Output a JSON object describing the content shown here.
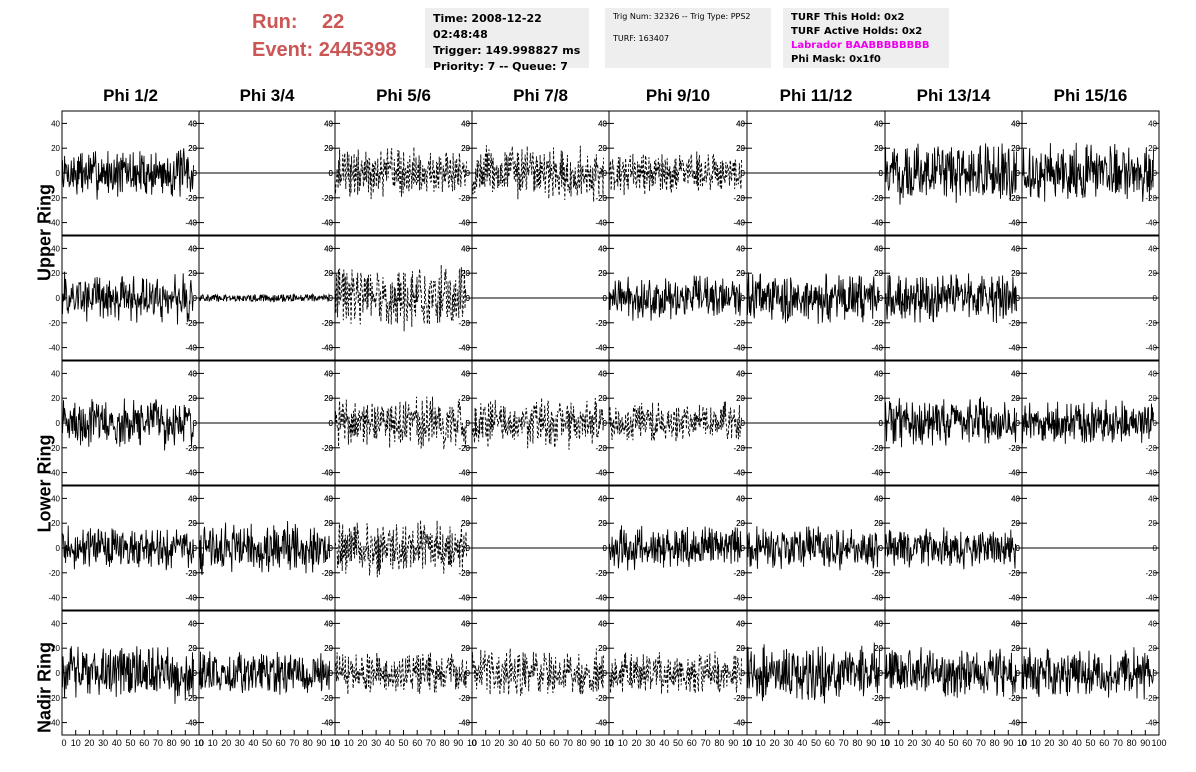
{
  "header": {
    "run_label": "Run:",
    "run_value": "22",
    "event_label": "Event:",
    "event_value": "2445398",
    "time": "Time: 2008-12-22 02:48:48",
    "trigger": "Trigger: 149.998827 ms",
    "priority": "Priority: 7 -- Queue: 7",
    "trig_num": "Trig Num: 32326 -- Trig Type: PPS2",
    "turf": "TURF: 163407",
    "turf_this_hold": "TURF This Hold: 0x2",
    "turf_active_holds": "TURF Active Holds: 0x2",
    "labrador": "Labrador BAABBBBBBBB",
    "phi_mask": "Phi Mask: 0x1f0"
  },
  "colors": {
    "run_text": "#cc5555",
    "labrador_text": "#ee00ee",
    "info_bg": "#eeeeee"
  },
  "columns": [
    "Phi 1/2",
    "Phi 3/4",
    "Phi 5/6",
    "Phi 7/8",
    "Phi 9/10",
    "Phi 11/12",
    "Phi 13/14",
    "Phi 15/16"
  ],
  "ring_labels": [
    "Upper Ring",
    "Lower Ring",
    "Nadir Ring"
  ],
  "chart_data": {
    "type": "line",
    "title": "",
    "xlabel": "",
    "ylabel": "",
    "xlim": [
      0,
      100
    ],
    "ylim": [
      -50,
      50
    ],
    "x_ticks": [
      "0",
      "10",
      "20",
      "30",
      "40",
      "50",
      "60",
      "70",
      "80",
      "90",
      "100"
    ],
    "y_ticks": [
      "40",
      "20",
      "0",
      "-20",
      "-40"
    ],
    "x_tick_labels_printed": [
      "0",
      "10",
      "20",
      "30",
      "40",
      "50",
      "60",
      "70",
      "80",
      "90",
      "10"
    ],
    "x_tick_labels_last_panel": [
      "0",
      "10",
      "20",
      "30",
      "40",
      "50",
      "60",
      "70",
      "80",
      "90",
      "100"
    ],
    "panel_styles": [
      [
        "solid",
        "flat",
        "dashed",
        "dashed",
        "dashed",
        "flat",
        "solid",
        "solid"
      ],
      [
        "solid",
        "small",
        "dashed",
        "flat",
        "solid",
        "solid",
        "solid",
        "flat"
      ],
      [
        "solid",
        "flat",
        "dashed",
        "dashed",
        "dashed",
        "flat",
        "solid",
        "solid"
      ],
      [
        "solid",
        "solid",
        "dashed",
        "flat",
        "solid",
        "solid",
        "solid",
        "flat"
      ],
      [
        "solid",
        "solid",
        "dashed",
        "dashed",
        "dashed",
        "solid",
        "solid",
        "solid"
      ]
    ],
    "panel_amplitude": [
      [
        14,
        0,
        14,
        16,
        12,
        0,
        16,
        16
      ],
      [
        14,
        3,
        18,
        0,
        12,
        14,
        14,
        0
      ],
      [
        14,
        0,
        14,
        14,
        12,
        0,
        14,
        12
      ],
      [
        12,
        14,
        16,
        0,
        12,
        12,
        12,
        0
      ],
      [
        16,
        12,
        12,
        14,
        12,
        16,
        14,
        14
      ]
    ]
  }
}
